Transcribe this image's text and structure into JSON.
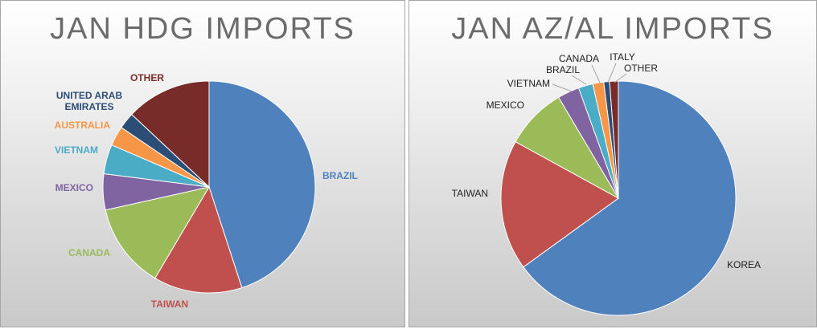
{
  "chart_data": [
    {
      "type": "pie",
      "title": "JAN HDG IMPORTS",
      "slices": [
        {
          "label": "BRAZIL",
          "value": 45.0,
          "color": "#4F81BD"
        },
        {
          "label": "TAIWAN",
          "value": 13.5,
          "color": "#C0504D"
        },
        {
          "label": "CANADA",
          "value": 13.0,
          "color": "#9BBB59"
        },
        {
          "label": "MEXICO",
          "value": 5.5,
          "color": "#8064A2"
        },
        {
          "label": "VIETNAM",
          "value": 4.5,
          "color": "#4BACC6"
        },
        {
          "label": "AUSTRALIA",
          "value": 3.0,
          "color": "#F79646"
        },
        {
          "label": "UNITED ARAB EMIRATES",
          "value": 2.5,
          "color": "#2C4D75"
        },
        {
          "label": "OTHER",
          "value": 13.0,
          "color": "#772C2A"
        }
      ]
    },
    {
      "type": "pie",
      "title": "JAN AZ/AL IMPORTS",
      "slices": [
        {
          "label": "KOREA",
          "value": 65.0,
          "color": "#4F81BD"
        },
        {
          "label": "TAIWAN",
          "value": 18.0,
          "color": "#C0504D"
        },
        {
          "label": "MEXICO",
          "value": 8.5,
          "color": "#9BBB59"
        },
        {
          "label": "VIETNAM",
          "value": 3.0,
          "color": "#8064A2"
        },
        {
          "label": "BRAZIL",
          "value": 2.0,
          "color": "#4BACC6"
        },
        {
          "label": "CANADA",
          "value": 1.5,
          "color": "#F79646"
        },
        {
          "label": "ITALY",
          "value": 0.8,
          "color": "#2C4D75"
        },
        {
          "label": "OTHER",
          "value": 1.2,
          "color": "#772C2A"
        }
      ]
    }
  ]
}
